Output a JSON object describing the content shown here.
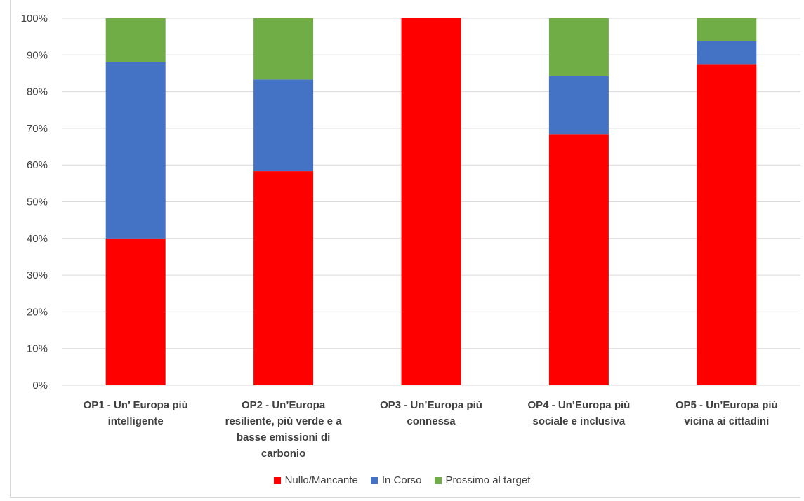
{
  "chart_data": {
    "type": "bar",
    "stacked": true,
    "categories": [
      "OP1 - Un' Europa più intelligente",
      "OP2 - Un'Europa resiliente, più verde e a basse emissioni di carbonio",
      "OP3 - Un'Europa più connessa",
      "OP4 - Un'Europa più sociale e inclusiva",
      "OP5 - Un'Europa più vicina ai cittadini"
    ],
    "category_lines": [
      [
        "OP1 - Un’ Europa più",
        "intelligente"
      ],
      [
        "OP2 - Un’Europa",
        "resiliente, più verde e a",
        "basse emissioni di",
        "carbonio"
      ],
      [
        "OP3 - Un’Europa più",
        "connessa"
      ],
      [
        "OP4 - Un’Europa più",
        "sociale e inclusiva"
      ],
      [
        "OP5 - Un’Europa più",
        "vicina ai cittadini"
      ]
    ],
    "series": [
      {
        "name": "Nullo/Mancante",
        "color": "#ff0000",
        "values": [
          40,
          58.3,
          100,
          68.4,
          87.5
        ]
      },
      {
        "name": "In Corso",
        "color": "#4472c4",
        "values": [
          48,
          25,
          0,
          15.8,
          6.25
        ]
      },
      {
        "name": "Prossimo al target",
        "color": "#70ad47",
        "values": [
          12,
          16.7,
          0,
          15.8,
          6.25
        ]
      }
    ],
    "yticks": [
      "0%",
      "10%",
      "20%",
      "30%",
      "40%",
      "50%",
      "60%",
      "70%",
      "80%",
      "90%",
      "100%"
    ],
    "ylim": [
      0,
      100
    ],
    "grid": true,
    "legend_position": "bottom"
  }
}
